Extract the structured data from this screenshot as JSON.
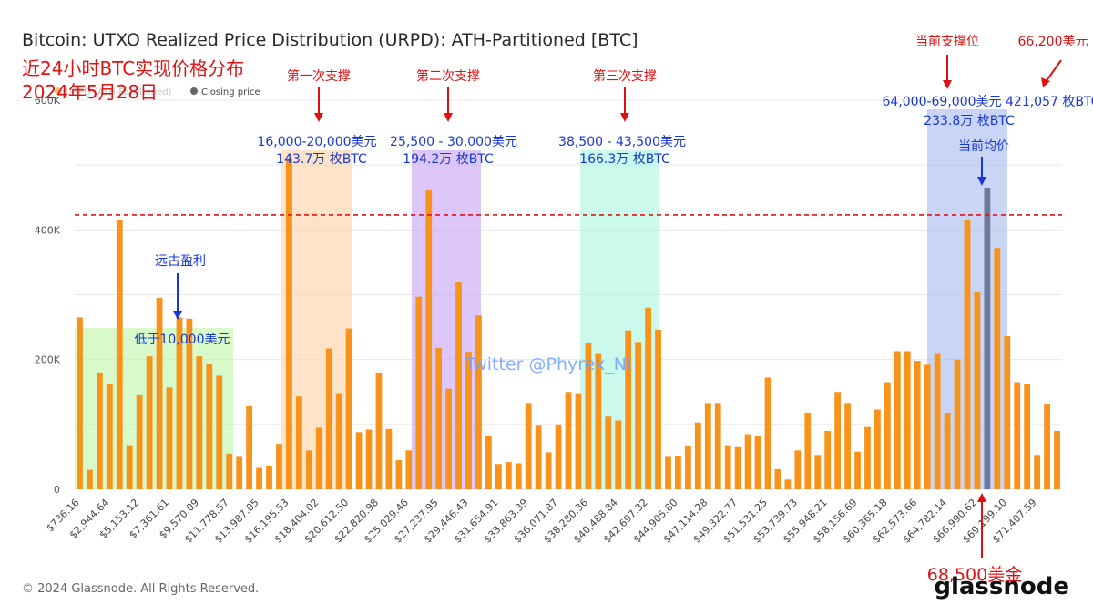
{
  "chart_data": {
    "type": "bar",
    "title": "Bitcoin: UTXO Realized Price Distribution (URPD): ATH-Partitioned [BTC]",
    "legend": {
      "series_label": "URPD (ATH-Partitioned)",
      "closing_label": "Closing price",
      "position": "top-left"
    },
    "y_ticks": [
      "0",
      "200K",
      "400K",
      "600K"
    ],
    "ylim": [
      0,
      600000
    ],
    "grid": true,
    "x_tick_labels": [
      "$736.16",
      "$2,944.64",
      "$5,153.12",
      "$7,361.61",
      "$9,570.09",
      "$11,778.57",
      "$13,987.05",
      "$16,195.53",
      "$18,404.02",
      "$20,612.50",
      "$22,820.98",
      "$25,029.46",
      "$27,237.95",
      "$29,446.43",
      "$31,654.91",
      "$33,863.39",
      "$36,071.87",
      "$38,280.36",
      "$40,488.84",
      "$42,697.32",
      "$44,905.80",
      "$47,114.28",
      "$49,322.77",
      "$51,531.25",
      "$53,739.73",
      "$55,948.21",
      "$58,156.69",
      "$60,365.18",
      "$62,573.66",
      "$64,782.14",
      "$66,990.62",
      "$69,199.10",
      "$71,407.59"
    ],
    "values": [
      265000,
      30000,
      180000,
      162000,
      415000,
      68000,
      145000,
      205000,
      295000,
      157000,
      265000,
      263000,
      205000,
      193000,
      175000,
      55000,
      50000,
      128000,
      33000,
      36000,
      70000,
      510000,
      143000,
      60000,
      95000,
      217000,
      148000,
      248000,
      88000,
      92000,
      180000,
      93000,
      45000,
      60000,
      297000,
      462000,
      218000,
      155000,
      320000,
      212000,
      268000,
      83000,
      39000,
      42000,
      40000,
      133000,
      98000,
      57000,
      100000,
      150000,
      148000,
      225000,
      210000,
      112000,
      106000,
      245000,
      227000,
      280000,
      246000,
      50000,
      52000,
      67000,
      103000,
      133000,
      133000,
      68000,
      65000,
      85000,
      83000,
      172000,
      31000,
      15000,
      60000,
      118000,
      53000,
      90000,
      150000,
      133000,
      58000,
      96000,
      123000,
      165000,
      213000,
      213000,
      198000,
      192000,
      210000,
      118000,
      200000,
      415000,
      305000,
      465000,
      372000,
      236000,
      165000,
      163000,
      53000,
      132000,
      90000
    ],
    "highlight_index": 91,
    "ath_line_value": 423000
  },
  "annotations": {
    "subtitle_line1": "近24小时BTC实现价格分布",
    "subtitle_line2": "2024年5月28日",
    "support1": "第一次支撑",
    "support2": "第二次支撑",
    "support3": "第三次支撑",
    "zone1_range": "16,000-20,000美元",
    "zone1_amount": "143.7万 枚BTC",
    "zone2_range": "25,500 - 30,000美元",
    "zone2_amount": "194.2万 枚BTC",
    "zone3_range": "38,500 - 43,500美元",
    "zone3_amount": "166.3万 枚BTC",
    "current_support": "当前支撑位",
    "current_range": "64,000-69,000美元",
    "current_amount": "233.8万 枚BTC",
    "right_price": "66,200美元",
    "right_amount": "421,057 枚BTC",
    "avg_price_label": "当前均价",
    "ancient_profit": "远古盈利",
    "below_10k": "低于10,000美元",
    "watermark": "Twitter @Phyrex_Ni",
    "price_68500": "68,500美金"
  },
  "footer": {
    "copyright": "© 2024 Glassnode. All Rights Reserved.",
    "logo": "glassnode"
  },
  "colors": {
    "bar": "#f7931a",
    "highlight_bar": "#6b7a99",
    "grid": "#e8e8e8",
    "ath_line": "#e01010",
    "zone_green": "#b8f5a0",
    "zone_orange": "#fcd9b0",
    "zone_purple": "#c9a8f7",
    "zone_teal": "#a8f5e0",
    "zone_blue": "#9fb3ef",
    "red_text": "#e01010",
    "blue_text": "#1638d6"
  }
}
